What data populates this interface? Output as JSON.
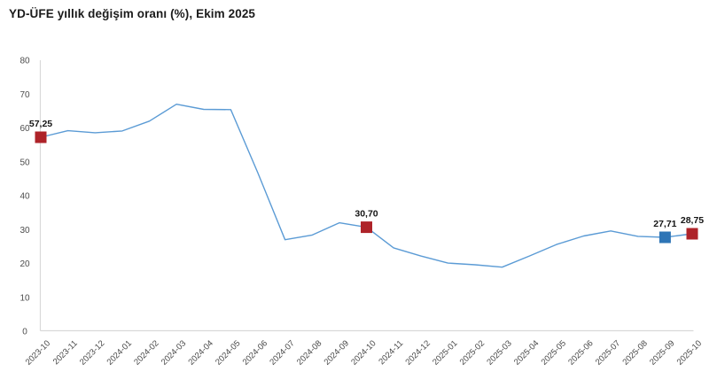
{
  "title": "YD-ÜFE yıllık değişim oranı (%), Ekim 2025",
  "colors": {
    "background": "#ffffff",
    "title_text": "#1b1b1b",
    "axis_line": "#d9d9d9",
    "tick_text": "#4d4d4d",
    "series_line": "#5b9bd5",
    "marker_red": "#ae2329",
    "marker_blue": "#2e75b6",
    "data_label_text": "#151515"
  },
  "chart_data": {
    "type": "line",
    "title": "YD-ÜFE yıllık değişim oranı (%), Ekim 2025",
    "xlabel": "",
    "ylabel": "",
    "ylim": [
      0,
      80
    ],
    "yticks": [
      0,
      10,
      20,
      30,
      40,
      50,
      60,
      70,
      80
    ],
    "grid": false,
    "legend_position": "none",
    "x": [
      "2023-10",
      "2023-11",
      "2023-12",
      "2024-01",
      "2024-02",
      "2024-03",
      "2024-04",
      "2024-05",
      "2024-06",
      "2024-07",
      "2024-08",
      "2024-09",
      "2024-10",
      "2024-11",
      "2024-12",
      "2025-01",
      "2025-02",
      "2025-03",
      "2025-04",
      "2025-05",
      "2025-06",
      "2025-07",
      "2025-08",
      "2025-09",
      "2025-10"
    ],
    "series": [
      {
        "name": "YD-ÜFE yıllık değişim oranı (%)",
        "color": "#5b9bd5",
        "values": [
          57.25,
          59.2,
          58.6,
          59.1,
          62.0,
          67.0,
          65.5,
          65.4,
          46.7,
          27.0,
          28.4,
          32.0,
          30.7,
          24.6,
          22.2,
          20.1,
          19.6,
          18.9,
          22.2,
          25.6,
          28.1,
          29.6,
          28.0,
          27.71,
          28.75
        ]
      }
    ],
    "annotations": [
      {
        "x": "2023-10",
        "value": 57.25,
        "label": "57,25",
        "marker": "square",
        "color": "#ae2329"
      },
      {
        "x": "2024-10",
        "value": 30.7,
        "label": "30,70",
        "marker": "square",
        "color": "#ae2329"
      },
      {
        "x": "2025-09",
        "value": 27.71,
        "label": "27,71",
        "marker": "square",
        "color": "#2e75b6"
      },
      {
        "x": "2025-10",
        "value": 28.75,
        "label": "28,75",
        "marker": "square",
        "color": "#ae2329"
      }
    ]
  }
}
